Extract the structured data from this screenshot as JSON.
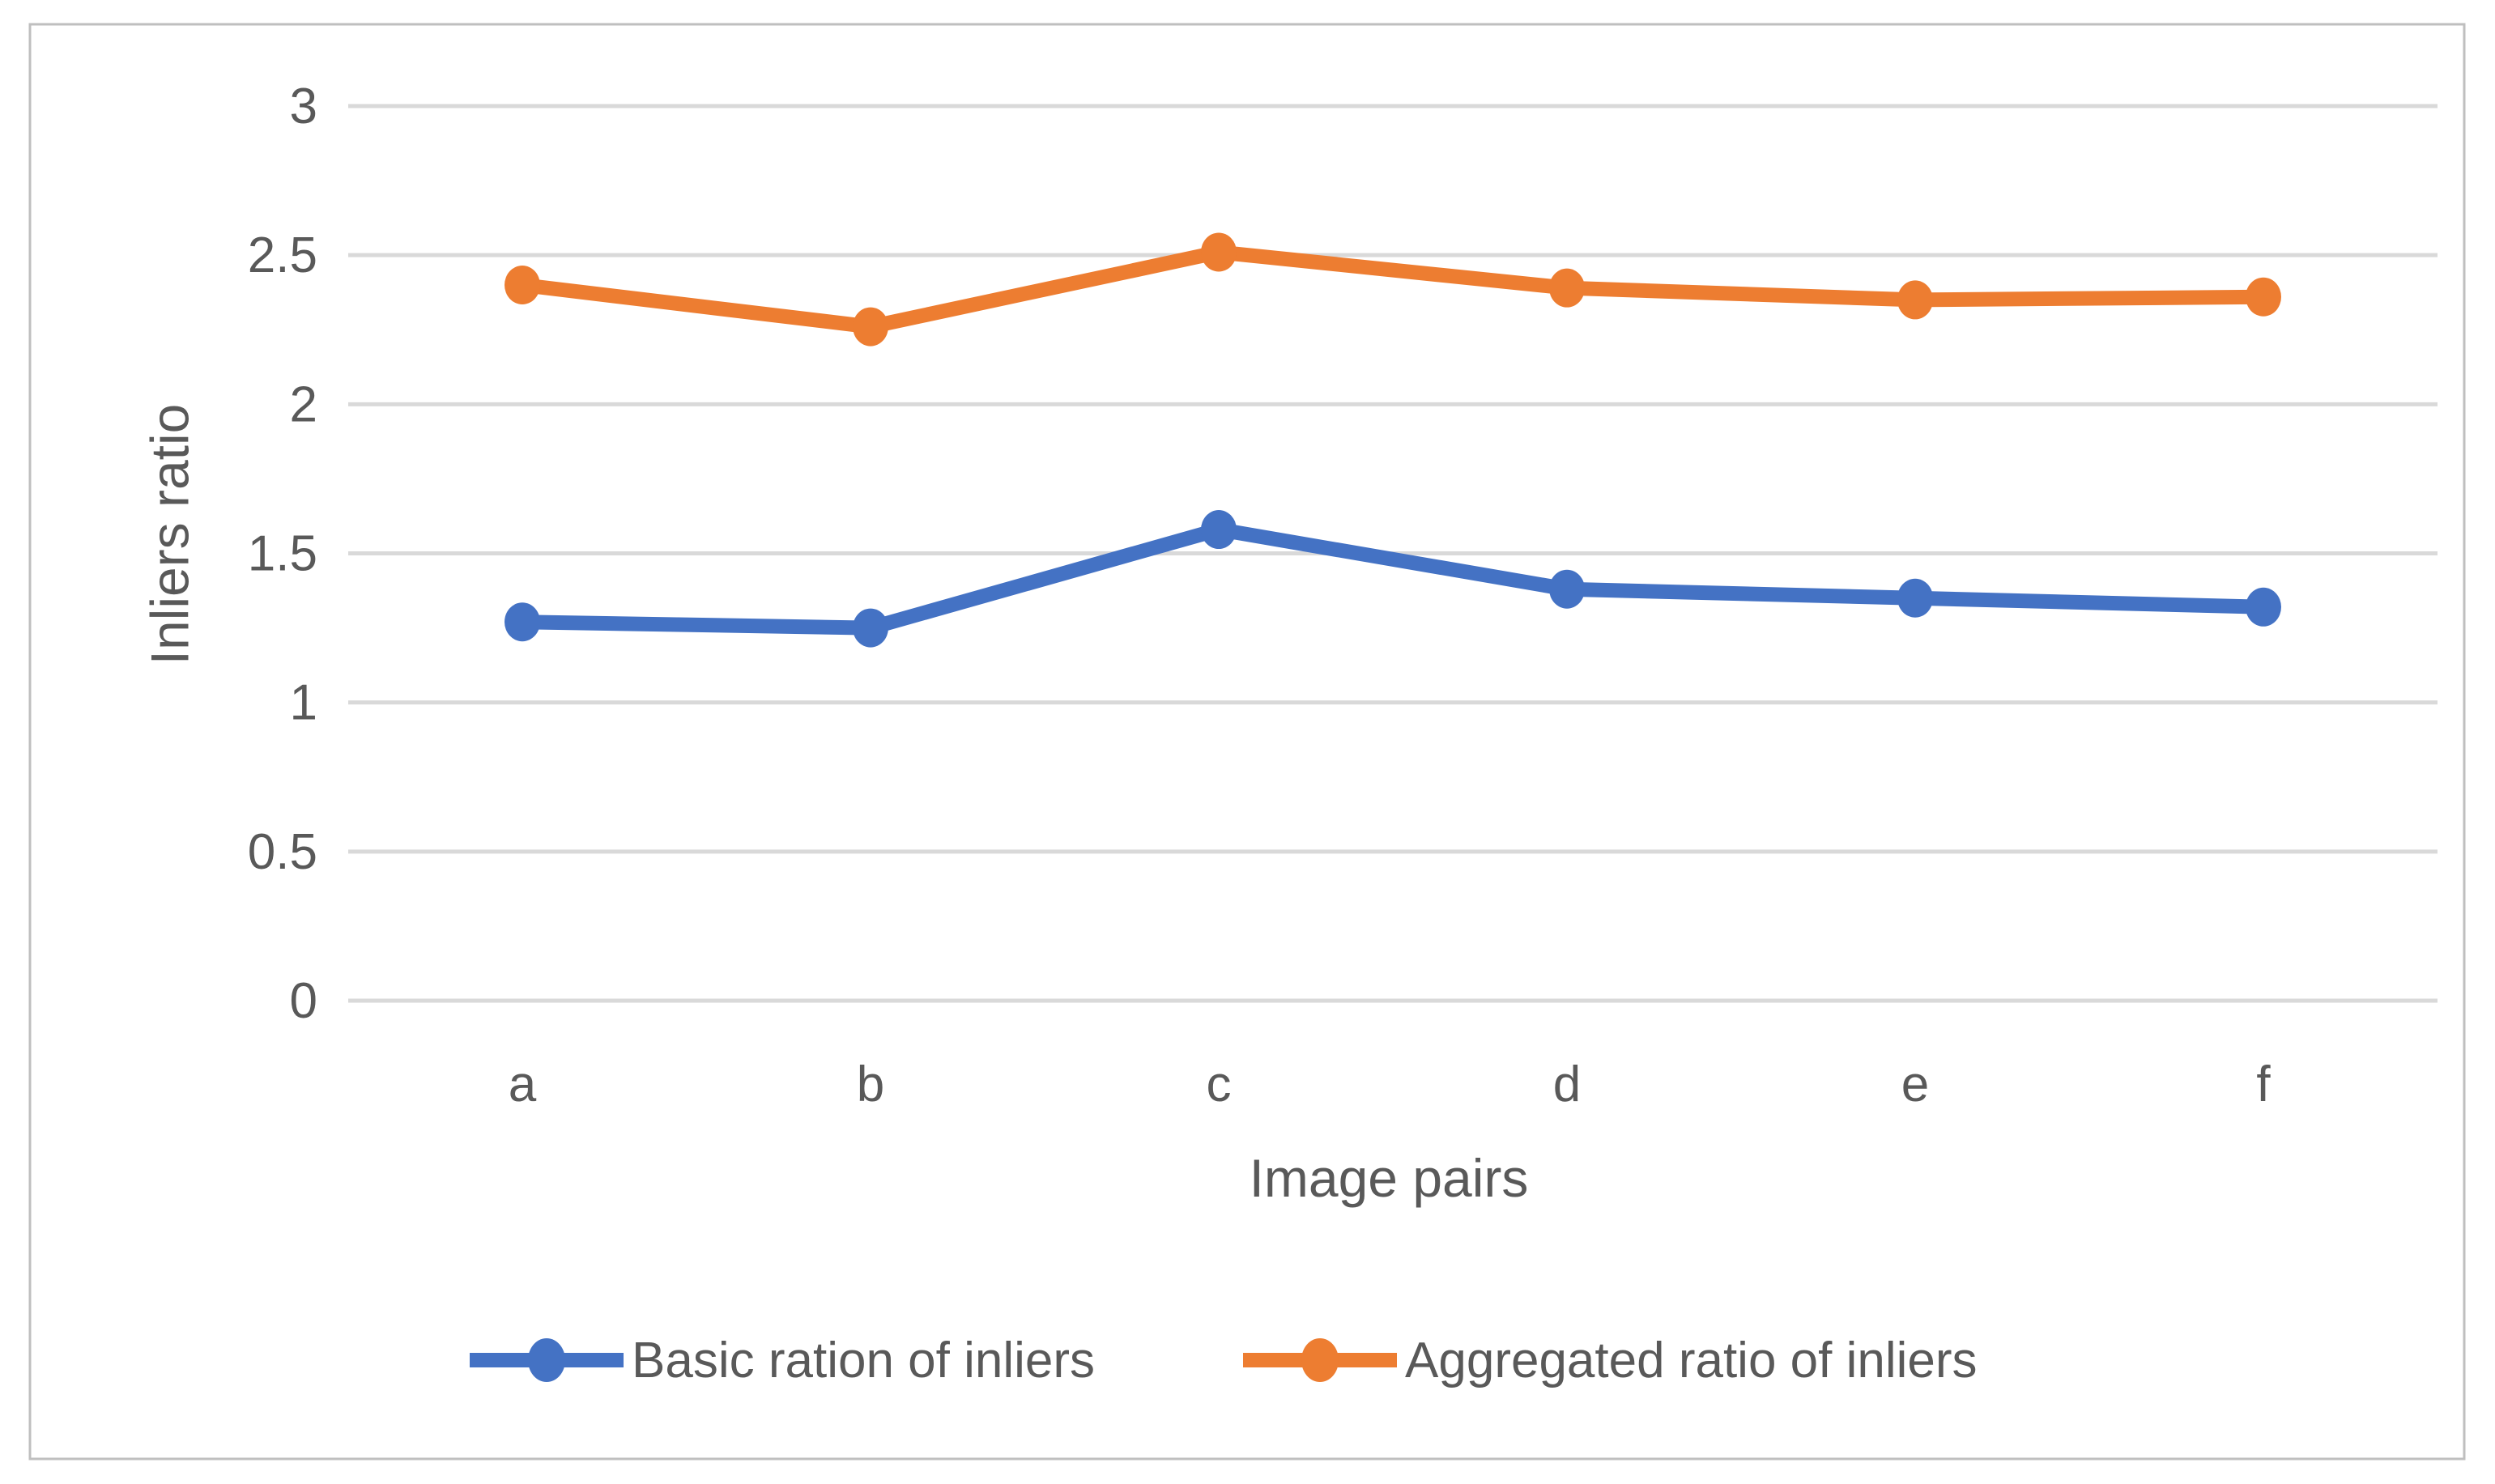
{
  "figure": {
    "background": "#ffffff",
    "border_color": "#bfbfbf"
  },
  "chart_data": {
    "type": "line",
    "title": "",
    "categories": [
      "a",
      "b",
      "c",
      "d",
      "e",
      "f"
    ],
    "series": [
      {
        "name": "Basic ration of inliers",
        "color": "#4472C4",
        "marker": "circle",
        "values": [
          1.27,
          1.25,
          1.58,
          1.38,
          1.35,
          1.32
        ]
      },
      {
        "name": "Aggregated ratio of inliers",
        "color": "#ED7D31",
        "marker": "circle",
        "values": [
          2.4,
          2.26,
          2.51,
          2.39,
          2.35,
          2.36
        ]
      }
    ],
    "xlabel": "Image pairs",
    "ylabel": "Inliers ratio",
    "ylim": [
      0,
      3
    ],
    "ytick_step": 0.5,
    "yticks": [
      "0",
      "0.5",
      "1",
      "1.5",
      "2",
      "2.5",
      "3"
    ],
    "grid": "horizontal",
    "gridline_color": "#d9d9d9",
    "text_color": "#595959",
    "legend_position": "bottom"
  }
}
